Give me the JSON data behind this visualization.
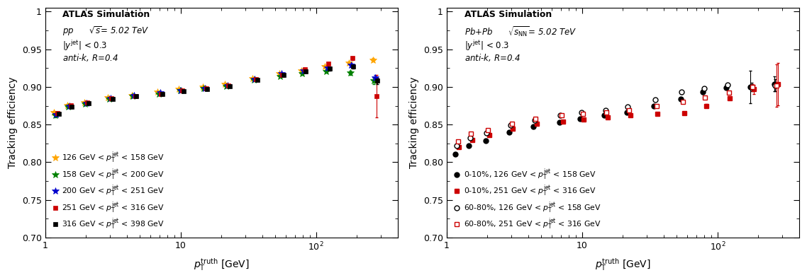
{
  "fig_width": 11.38,
  "fig_height": 3.96,
  "left_plot": {
    "xlabel": "$p_{\\mathrm{T}}^{\\mathrm{truth}}$ [GeV]",
    "ylabel": "Tracking efficiency",
    "xlim": [
      1,
      400
    ],
    "ylim": [
      0.7,
      1.005
    ],
    "yticks": [
      0.7,
      0.75,
      0.8,
      0.85,
      0.9,
      0.95,
      1.0
    ],
    "series": [
      {
        "label": "126 GeV < $p_{\\mathrm{T}}^{\\mathrm{jet}}$ < 158 GeV",
        "color": "#FFA500",
        "marker": "*",
        "markersize": 7,
        "xoffset": 0.97,
        "x": [
          1.2,
          1.5,
          2.0,
          3.0,
          4.5,
          7.0,
          10.0,
          15.0,
          22.0,
          35.0,
          55.0,
          80.0,
          120.0,
          180.0,
          270.0
        ],
        "y": [
          0.866,
          0.876,
          0.879,
          0.886,
          0.889,
          0.893,
          0.897,
          0.9,
          0.904,
          0.911,
          0.918,
          0.922,
          0.927,
          0.932,
          0.936
        ],
        "yerr": [
          0.002,
          0.001,
          0.001,
          0.001,
          0.001,
          0.001,
          0.001,
          0.001,
          0.001,
          0.001,
          0.001,
          0.001,
          0.002,
          0.002,
          0.002
        ]
      },
      {
        "label": "158 GeV < $p_{\\mathrm{T}}^{\\mathrm{jet}}$ < 200 GeV",
        "color": "#008000",
        "marker": "*",
        "markersize": 7,
        "xoffset": 0.99,
        "x": [
          1.2,
          1.5,
          2.0,
          3.0,
          4.5,
          7.0,
          10.0,
          15.0,
          22.0,
          35.0,
          55.0,
          80.0,
          120.0,
          180.0,
          270.0
        ],
        "y": [
          0.862,
          0.874,
          0.877,
          0.884,
          0.888,
          0.891,
          0.895,
          0.898,
          0.901,
          0.909,
          0.914,
          0.918,
          0.921,
          0.919,
          0.908
        ],
        "yerr": [
          0.002,
          0.001,
          0.001,
          0.001,
          0.001,
          0.001,
          0.001,
          0.001,
          0.001,
          0.001,
          0.001,
          0.002,
          0.002,
          0.003,
          0.004
        ]
      },
      {
        "label": "200 GeV < $p_{\\mathrm{T}}^{\\mathrm{jet}}$ < 251 GeV",
        "color": "#0000CC",
        "marker": "*",
        "markersize": 7,
        "xoffset": 1.01,
        "x": [
          1.2,
          1.5,
          2.0,
          3.0,
          4.5,
          7.0,
          10.0,
          15.0,
          22.0,
          35.0,
          55.0,
          80.0,
          120.0,
          180.0,
          270.0
        ],
        "y": [
          0.863,
          0.875,
          0.878,
          0.885,
          0.889,
          0.892,
          0.895,
          0.898,
          0.902,
          0.91,
          0.918,
          0.922,
          0.925,
          0.929,
          0.912
        ],
        "yerr": [
          0.002,
          0.001,
          0.001,
          0.001,
          0.001,
          0.001,
          0.001,
          0.001,
          0.001,
          0.001,
          0.001,
          0.002,
          0.002,
          0.003,
          0.004
        ]
      },
      {
        "label": "251 GeV < $p_{\\mathrm{T}}^{\\mathrm{jet}}$ < 316 GeV",
        "color": "#CC0000",
        "marker": "s",
        "markersize": 5,
        "xoffset": 1.03,
        "x": [
          1.2,
          1.5,
          2.0,
          3.0,
          4.5,
          7.0,
          10.0,
          15.0,
          22.0,
          35.0,
          55.0,
          80.0,
          120.0,
          180.0,
          270.0
        ],
        "y": [
          0.865,
          0.876,
          0.879,
          0.885,
          0.888,
          0.891,
          0.895,
          0.898,
          0.902,
          0.91,
          0.916,
          0.923,
          0.931,
          0.938,
          0.888
        ],
        "yerr": [
          0.002,
          0.001,
          0.001,
          0.001,
          0.001,
          0.001,
          0.001,
          0.001,
          0.001,
          0.001,
          0.002,
          0.002,
          0.002,
          0.002,
          0.028
        ]
      },
      {
        "label": "316 GeV < $p_{\\mathrm{T}}^{\\mathrm{jet}}$ < 398 GeV",
        "color": "#000000",
        "marker": "s",
        "markersize": 5,
        "xoffset": 1.05,
        "x": [
          1.2,
          1.5,
          2.0,
          3.0,
          4.5,
          7.0,
          10.0,
          15.0,
          22.0,
          35.0,
          55.0,
          80.0,
          120.0,
          180.0,
          270.0
        ],
        "y": [
          0.864,
          0.874,
          0.878,
          0.884,
          0.888,
          0.891,
          0.894,
          0.897,
          0.901,
          0.909,
          0.916,
          0.921,
          0.924,
          0.927,
          0.908
        ],
        "yerr": [
          0.002,
          0.001,
          0.001,
          0.001,
          0.001,
          0.001,
          0.001,
          0.001,
          0.001,
          0.001,
          0.002,
          0.002,
          0.002,
          0.003,
          0.004
        ]
      }
    ]
  },
  "right_plot": {
    "xlabel": "$p_{\\mathrm{T}}^{\\mathrm{truth}}$ [GeV]",
    "ylabel": "Tracking efficiency",
    "xlim": [
      1,
      400
    ],
    "ylim": [
      0.7,
      1.005
    ],
    "yticks": [
      0.7,
      0.75,
      0.8,
      0.85,
      0.9,
      0.95,
      1.0
    ],
    "series": [
      {
        "label": "0-10%, 126 GeV < $p_{\\mathrm{T}}^{\\mathrm{jet}}$ < 158 GeV",
        "color": "#000000",
        "marker": "o",
        "markersize": 5,
        "filled": true,
        "xoffset": 0.97,
        "x": [
          1.2,
          1.5,
          2.0,
          3.0,
          4.5,
          7.0,
          10.0,
          15.0,
          22.0,
          35.0,
          55.0,
          80.0,
          120.0,
          180.0,
          270.0
        ],
        "y": [
          0.811,
          0.822,
          0.829,
          0.84,
          0.847,
          0.853,
          0.858,
          0.862,
          0.866,
          0.875,
          0.884,
          0.893,
          0.899,
          0.9,
          0.904
        ],
        "yerr": [
          0.002,
          0.001,
          0.001,
          0.001,
          0.001,
          0.001,
          0.001,
          0.001,
          0.001,
          0.001,
          0.002,
          0.002,
          0.002,
          0.022,
          0.01
        ]
      },
      {
        "label": "0-10%, 251 GeV < $p_{\\mathrm{T}}^{\\mathrm{jet}}$ < 316 GeV",
        "color": "#CC0000",
        "marker": "s",
        "markersize": 5,
        "filled": true,
        "xoffset": 1.03,
        "x": [
          1.2,
          1.5,
          2.0,
          3.0,
          4.5,
          7.0,
          10.0,
          15.0,
          22.0,
          35.0,
          55.0,
          80.0,
          120.0,
          180.0,
          270.0
        ],
        "y": [
          0.82,
          0.83,
          0.836,
          0.845,
          0.851,
          0.854,
          0.857,
          0.86,
          0.862,
          0.864,
          0.865,
          0.875,
          0.885,
          0.897,
          0.904
        ],
        "yerr": [
          0.002,
          0.001,
          0.001,
          0.001,
          0.001,
          0.001,
          0.001,
          0.001,
          0.001,
          0.001,
          0.002,
          0.002,
          0.002,
          0.006,
          0.028
        ]
      },
      {
        "label": "60-80%, 126 GeV < $p_{\\mathrm{T}}^{\\mathrm{jet}}$ < 158 GeV",
        "color": "#000000",
        "marker": "o",
        "markersize": 5,
        "filled": false,
        "xoffset": 0.99,
        "x": [
          1.2,
          1.5,
          2.0,
          3.0,
          4.5,
          7.0,
          10.0,
          15.0,
          22.0,
          35.0,
          55.0,
          80.0,
          120.0,
          180.0,
          270.0
        ],
        "y": [
          0.822,
          0.832,
          0.839,
          0.849,
          0.856,
          0.862,
          0.866,
          0.869,
          0.874,
          0.883,
          0.893,
          0.898,
          0.903,
          0.9,
          0.902
        ],
        "yerr": [
          0.002,
          0.001,
          0.001,
          0.001,
          0.001,
          0.001,
          0.001,
          0.001,
          0.001,
          0.001,
          0.002,
          0.002,
          0.002,
          0.006,
          0.008
        ]
      },
      {
        "label": "60-80%, 251 GeV < $p_{\\mathrm{T}}^{\\mathrm{jet}}$ < 316 GeV",
        "color": "#CC0000",
        "marker": "s",
        "markersize": 5,
        "filled": false,
        "xoffset": 1.01,
        "x": [
          1.2,
          1.5,
          2.0,
          3.0,
          4.5,
          7.0,
          10.0,
          15.0,
          22.0,
          35.0,
          55.0,
          80.0,
          120.0,
          180.0,
          270.0
        ],
        "y": [
          0.828,
          0.838,
          0.843,
          0.851,
          0.858,
          0.862,
          0.864,
          0.866,
          0.869,
          0.875,
          0.88,
          0.886,
          0.892,
          0.9,
          0.902
        ],
        "yerr": [
          0.002,
          0.001,
          0.001,
          0.001,
          0.001,
          0.001,
          0.001,
          0.001,
          0.001,
          0.001,
          0.002,
          0.002,
          0.002,
          0.004,
          0.028
        ]
      }
    ]
  }
}
